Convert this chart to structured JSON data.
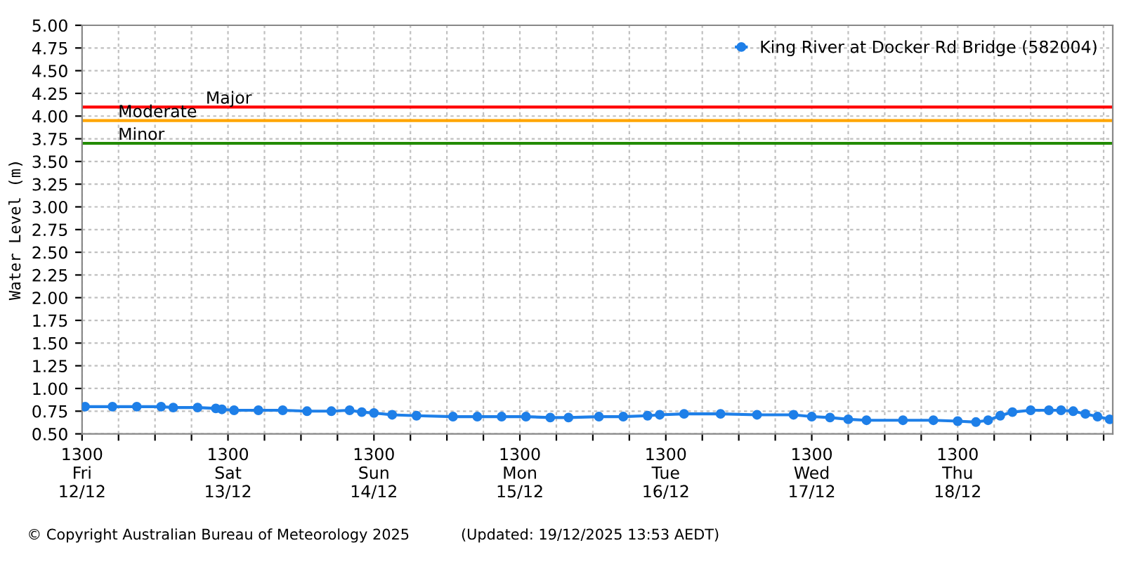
{
  "chart_data": {
    "type": "line",
    "ylabel": "Water Level (m)",
    "x": [
      "2025-12-12T13:30",
      "2025-12-12T18:00",
      "2025-12-12T22:00",
      "2025-12-13T02:00",
      "2025-12-13T04:00",
      "2025-12-13T08:00",
      "2025-12-13T11:00",
      "2025-12-13T12:00",
      "2025-12-13T14:00",
      "2025-12-13T18:00",
      "2025-12-13T22:00",
      "2025-12-14T02:00",
      "2025-12-14T06:00",
      "2025-12-14T09:00",
      "2025-12-14T11:00",
      "2025-12-14T13:00",
      "2025-12-14T16:00",
      "2025-12-14T20:00",
      "2025-12-15T02:00",
      "2025-12-15T06:00",
      "2025-12-15T10:00",
      "2025-12-15T14:00",
      "2025-12-15T18:00",
      "2025-12-15T21:00",
      "2025-12-16T02:00",
      "2025-12-16T06:00",
      "2025-12-16T10:00",
      "2025-12-16T12:00",
      "2025-12-16T16:00",
      "2025-12-16T22:00",
      "2025-12-17T04:00",
      "2025-12-17T10:00",
      "2025-12-17T13:00",
      "2025-12-17T16:00",
      "2025-12-17T19:00",
      "2025-12-17T22:00",
      "2025-12-18T04:00",
      "2025-12-18T09:00",
      "2025-12-18T13:00",
      "2025-12-18T16:00",
      "2025-12-18T18:00",
      "2025-12-18T20:00",
      "2025-12-18T22:00",
      "2025-12-19T01:00",
      "2025-12-19T04:00",
      "2025-12-19T06:00",
      "2025-12-19T08:00",
      "2025-12-19T10:00",
      "2025-12-19T12:00",
      "2025-12-19T14:00"
    ],
    "series": [
      {
        "name": "King River at Docker Rd Bridge (582004)",
        "color": "#1e7fe8",
        "values": [
          0.8,
          0.8,
          0.8,
          0.8,
          0.79,
          0.79,
          0.78,
          0.77,
          0.76,
          0.76,
          0.76,
          0.75,
          0.75,
          0.76,
          0.74,
          0.73,
          0.71,
          0.7,
          0.69,
          0.69,
          0.69,
          0.69,
          0.68,
          0.68,
          0.69,
          0.69,
          0.7,
          0.71,
          0.72,
          0.72,
          0.71,
          0.71,
          0.69,
          0.68,
          0.66,
          0.65,
          0.65,
          0.65,
          0.64,
          0.63,
          0.65,
          0.7,
          0.74,
          0.76,
          0.76,
          0.76,
          0.75,
          0.72,
          0.69,
          0.66
        ]
      }
    ],
    "xlim": [
      "2025-12-12T13:00",
      "2025-12-19T14:30"
    ],
    "xticks": [
      {
        "value": "2025-12-12T13:00",
        "label": "1300\nFri\n12/12"
      },
      {
        "value": "2025-12-12T19:00",
        "label": null
      },
      {
        "value": "2025-12-13T01:00",
        "label": null
      },
      {
        "value": "2025-12-13T07:00",
        "label": null
      },
      {
        "value": "2025-12-13T13:00",
        "label": "1300\nSat\n13/12"
      },
      {
        "value": "2025-12-13T19:00",
        "label": null
      },
      {
        "value": "2025-12-14T01:00",
        "label": null
      },
      {
        "value": "2025-12-14T07:00",
        "label": null
      },
      {
        "value": "2025-12-14T13:00",
        "label": "1300\nSun\n14/12"
      },
      {
        "value": "2025-12-14T19:00",
        "label": null
      },
      {
        "value": "2025-12-15T01:00",
        "label": null
      },
      {
        "value": "2025-12-15T07:00",
        "label": null
      },
      {
        "value": "2025-12-15T13:00",
        "label": "1300\nMon\n15/12"
      },
      {
        "value": "2025-12-15T19:00",
        "label": null
      },
      {
        "value": "2025-12-16T01:00",
        "label": null
      },
      {
        "value": "2025-12-16T07:00",
        "label": null
      },
      {
        "value": "2025-12-16T13:00",
        "label": "1300\nTue\n16/12"
      },
      {
        "value": "2025-12-16T19:00",
        "label": null
      },
      {
        "value": "2025-12-17T01:00",
        "label": null
      },
      {
        "value": "2025-12-17T07:00",
        "label": null
      },
      {
        "value": "2025-12-17T13:00",
        "label": "1300\nWed\n17/12"
      },
      {
        "value": "2025-12-17T19:00",
        "label": null
      },
      {
        "value": "2025-12-18T01:00",
        "label": null
      },
      {
        "value": "2025-12-18T07:00",
        "label": null
      },
      {
        "value": "2025-12-18T13:00",
        "label": "1300\nThu\n18/12"
      },
      {
        "value": "2025-12-18T19:00",
        "label": null
      },
      {
        "value": "2025-12-19T01:00",
        "label": null
      },
      {
        "value": "2025-12-19T07:00",
        "label": null
      },
      {
        "value": "2025-12-19T13:00",
        "label": null
      }
    ],
    "ylim": [
      0.5,
      5.0
    ],
    "yticks": [
      {
        "value": 0.5,
        "label": "0.50"
      },
      {
        "value": 0.75,
        "label": "0.75"
      },
      {
        "value": 1.0,
        "label": "1.00"
      },
      {
        "value": 1.25,
        "label": "1.25"
      },
      {
        "value": 1.5,
        "label": "1.50"
      },
      {
        "value": 1.75,
        "label": "1.75"
      },
      {
        "value": 2.0,
        "label": "2.00"
      },
      {
        "value": 2.25,
        "label": "2.25"
      },
      {
        "value": 2.5,
        "label": "2.50"
      },
      {
        "value": 2.75,
        "label": "2.75"
      },
      {
        "value": 3.0,
        "label": "3.00"
      },
      {
        "value": 3.25,
        "label": "3.25"
      },
      {
        "value": 3.5,
        "label": "3.50"
      },
      {
        "value": 3.75,
        "label": "3.75"
      },
      {
        "value": 4.0,
        "label": "4.00"
      },
      {
        "value": 4.25,
        "label": "4.25"
      },
      {
        "value": 4.5,
        "label": "4.50"
      },
      {
        "value": 4.75,
        "label": "4.75"
      },
      {
        "value": 5.0,
        "label": "5.00"
      }
    ],
    "ref_lines": [
      {
        "axis": "y",
        "value": 4.1,
        "label": "Major",
        "color": "#ff0000"
      },
      {
        "axis": "y",
        "value": 3.95,
        "label": "Moderate",
        "color": "#ffa500"
      },
      {
        "axis": "y",
        "value": 3.7,
        "label": "Minor",
        "color": "#228b00"
      }
    ],
    "annotations": [
      "© Copyright Australian Bureau of Meteorology 2025",
      "(Updated: 19/12/2025 13:53 AEDT)"
    ],
    "grid": true,
    "legend": "top right",
    "marker": "circle",
    "line_style": "solid"
  }
}
